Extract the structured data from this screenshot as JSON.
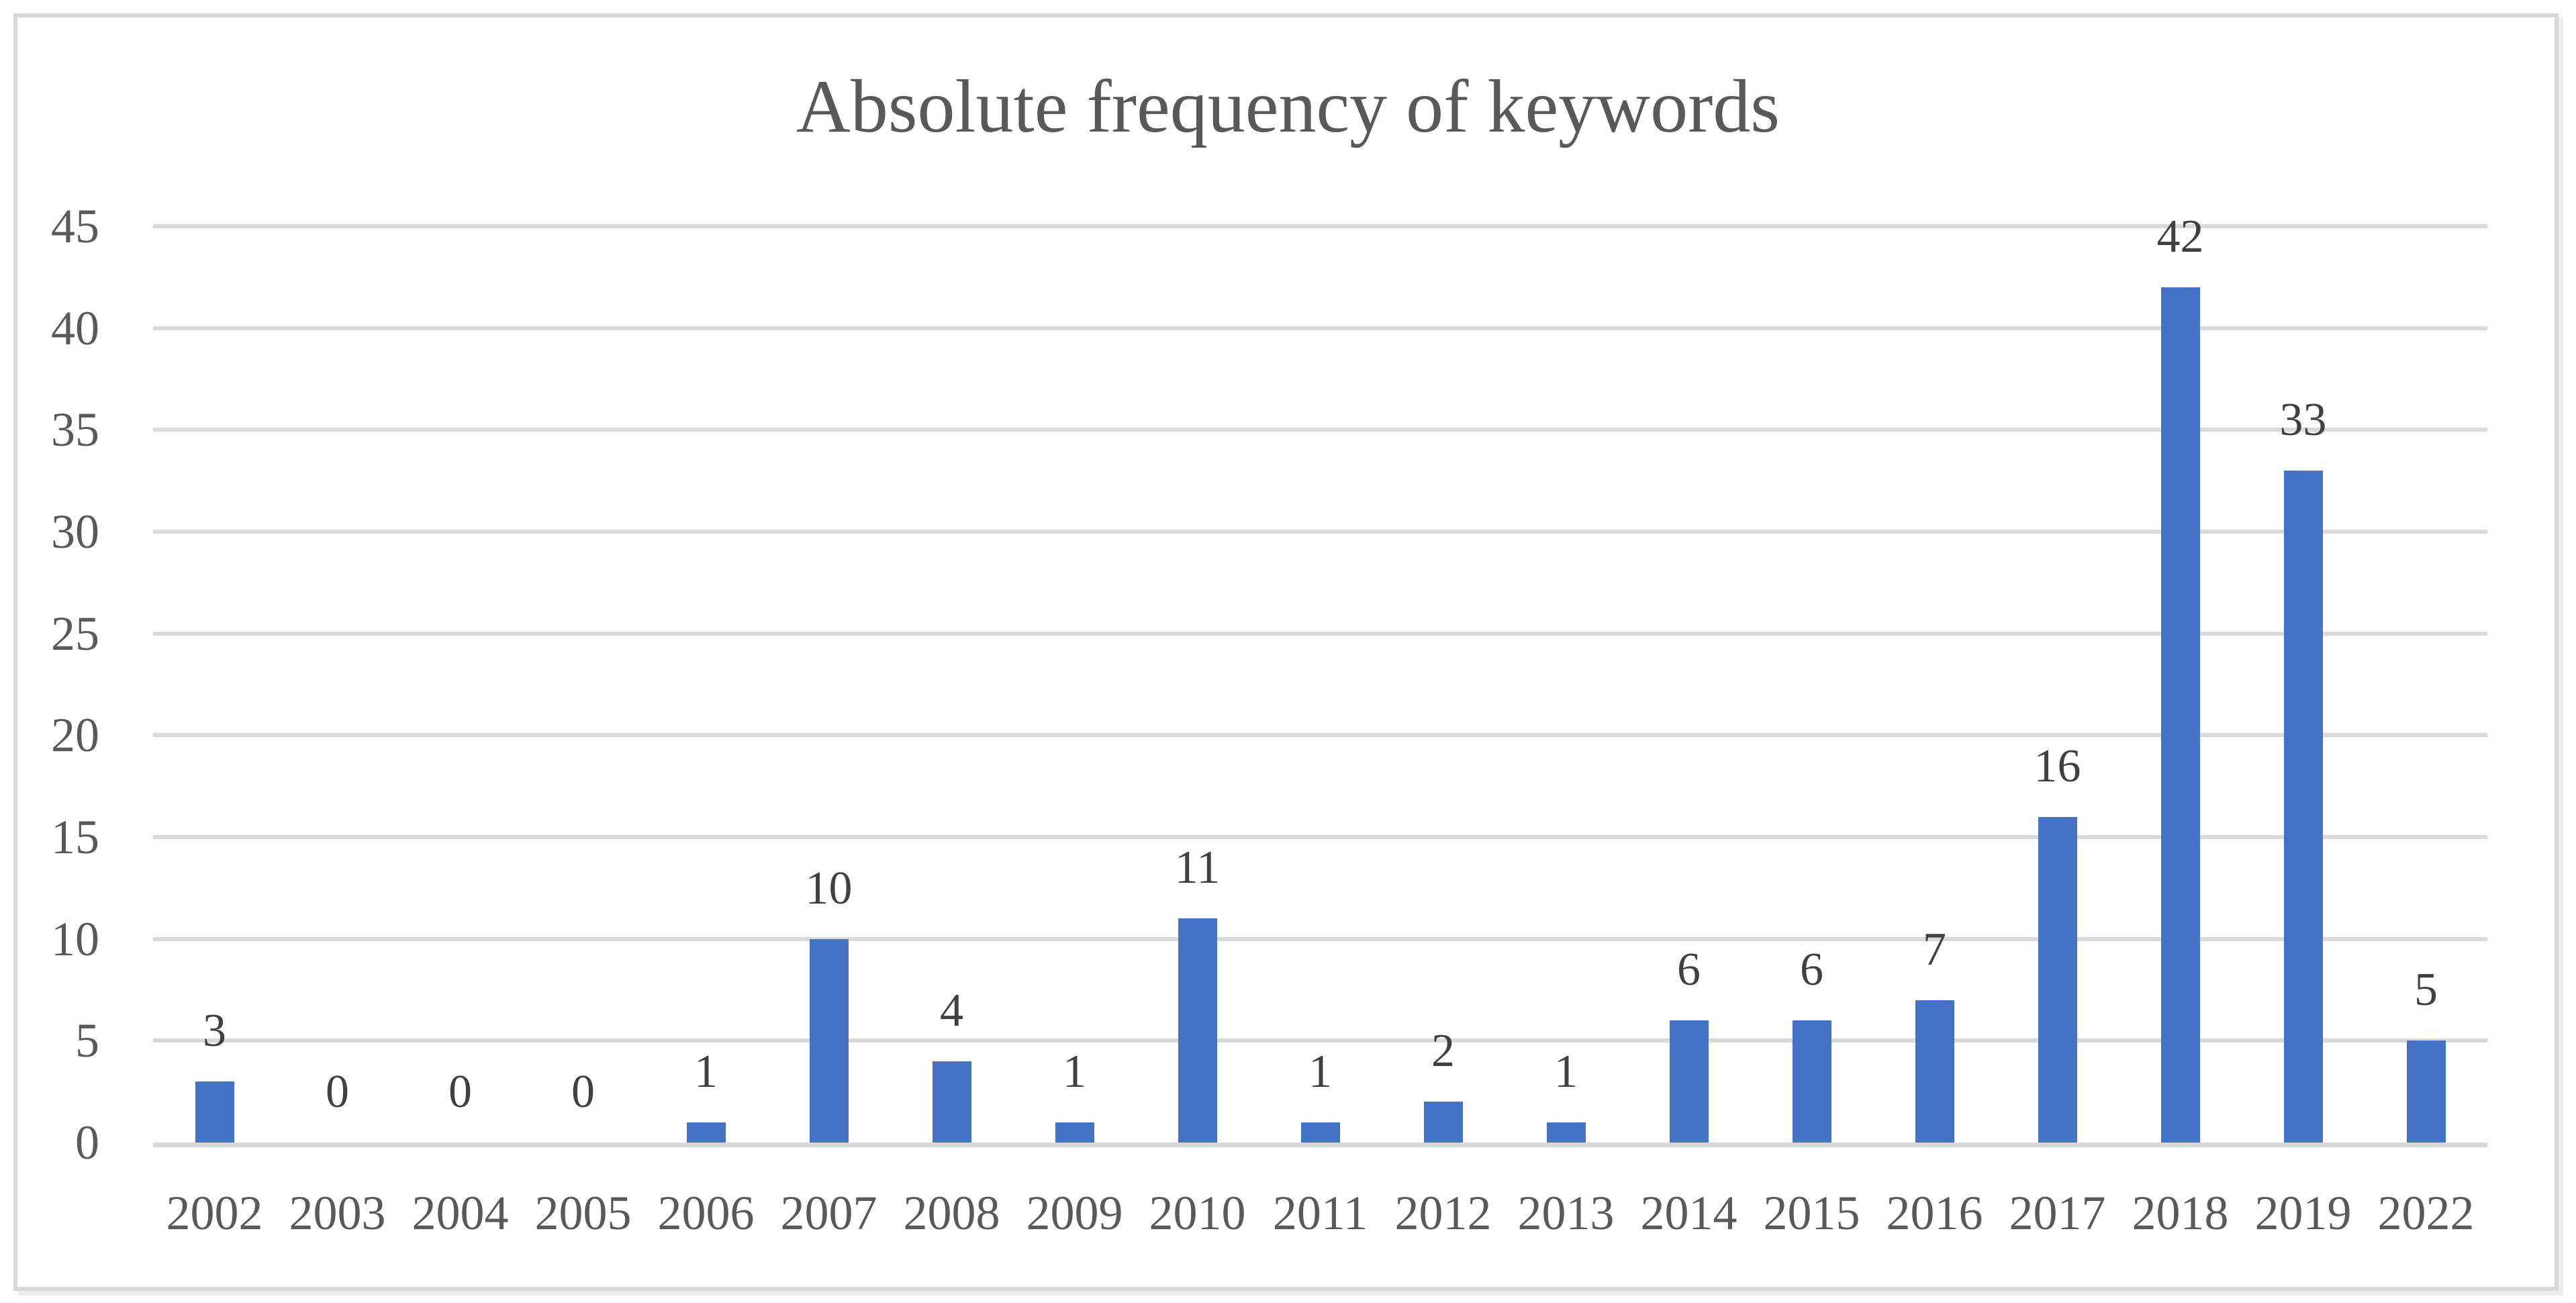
{
  "chart_data": {
    "type": "bar",
    "title": "Absolute frequency of keywords",
    "categories": [
      "2002",
      "2003",
      "2004",
      "2005",
      "2006",
      "2007",
      "2008",
      "2009",
      "2010",
      "2011",
      "2012",
      "2013",
      "2014",
      "2015",
      "2016",
      "2017",
      "2018",
      "2019",
      "2022"
    ],
    "values": [
      3,
      0,
      0,
      0,
      1,
      10,
      4,
      1,
      11,
      1,
      2,
      1,
      6,
      6,
      7,
      16,
      42,
      33,
      5
    ],
    "xlabel": "",
    "ylabel": "",
    "ylim": [
      0,
      45
    ],
    "yticks": [
      0,
      5,
      10,
      15,
      20,
      25,
      30,
      35,
      40,
      45
    ],
    "grid": "horizontal-gridlines-on",
    "legend": "none",
    "data_labels_position": "outside-end",
    "colors": {
      "bar": "#4472C4",
      "gridline": "#D9D9D9",
      "axis_text": "#595959",
      "data_label_text": "#404040",
      "title_text": "#595959",
      "frame_border": "#D8D8D8",
      "background": "#FFFFFF"
    }
  }
}
